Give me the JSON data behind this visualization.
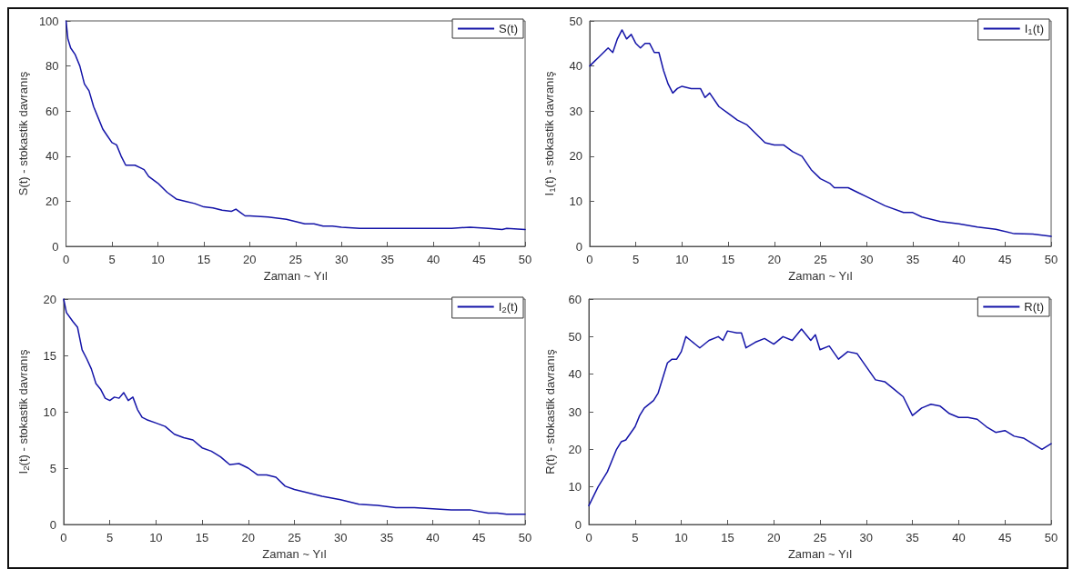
{
  "chart_data": [
    {
      "type": "line",
      "xlabel": "Zaman ~ Yıl",
      "ylabel": "S(t) - stokastik davranış",
      "xlim": [
        0,
        50
      ],
      "xticks": [
        0,
        5,
        10,
        15,
        20,
        25,
        30,
        35,
        40,
        45,
        50
      ],
      "ylim": [
        0,
        100
      ],
      "yticks": [
        0,
        20,
        40,
        60,
        80,
        100
      ],
      "grid": false,
      "legend": "top right",
      "marker": "none",
      "line_style": "solid",
      "series": [
        {
          "name": "S(t)",
          "color": "#1414a8",
          "x": [
            0,
            0.2,
            0.5,
            1,
            1.5,
            2,
            2.5,
            3,
            3.5,
            4,
            4.5,
            5,
            5.5,
            6,
            6.5,
            7,
            7.5,
            8,
            8.5,
            9,
            10,
            11,
            12,
            13,
            14,
            15,
            16,
            17,
            18,
            18.5,
            19,
            19.5,
            20,
            22,
            24,
            25,
            26,
            27,
            28,
            29,
            30,
            32,
            34,
            36,
            38,
            40,
            42,
            44,
            46,
            47.5,
            48,
            50
          ],
          "values": [
            100,
            92,
            88,
            85,
            80,
            72,
            69,
            62,
            57,
            52,
            49,
            46,
            45,
            40,
            36,
            36,
            36,
            35,
            34,
            31,
            28,
            24,
            21,
            20,
            19,
            17.5,
            17,
            16,
            15.5,
            16.5,
            15,
            13.5,
            13.5,
            13,
            12,
            11,
            10,
            10,
            9,
            9,
            8.5,
            8,
            8,
            8,
            8,
            8,
            8,
            8.5,
            8,
            7.5,
            8,
            7.5
          ]
        }
      ]
    },
    {
      "type": "line",
      "xlabel": "Zaman ~ Yıl",
      "ylabel": "I$_{1}$(t) - stokastik davranış",
      "xlim": [
        0,
        50
      ],
      "xticks": [
        0,
        5,
        10,
        15,
        20,
        25,
        30,
        35,
        40,
        45,
        50
      ],
      "ylim": [
        0,
        50
      ],
      "yticks": [
        0,
        10,
        20,
        30,
        40,
        50
      ],
      "grid": false,
      "legend": "top right",
      "marker": "none",
      "line_style": "solid",
      "series": [
        {
          "name": "I$_{1}$(t)",
          "color": "#1414a8",
          "x": [
            0,
            0.5,
            1,
            1.5,
            2,
            2.5,
            3,
            3.5,
            4,
            4.5,
            5,
            5.5,
            6,
            6.5,
            7,
            7.5,
            8,
            8.5,
            9,
            9.5,
            10,
            11,
            12,
            12.5,
            13,
            14,
            15,
            16,
            17,
            18,
            19,
            20,
            21,
            22,
            23,
            24,
            25,
            26,
            26.5,
            28,
            29,
            30,
            32,
            34,
            35,
            36,
            38,
            40,
            42,
            44,
            46,
            48,
            50
          ],
          "values": [
            40,
            41,
            42,
            43,
            44,
            43,
            46,
            48,
            46,
            47,
            45,
            44,
            45,
            45,
            43,
            43,
            39,
            36,
            34,
            35,
            35.5,
            35,
            35,
            33,
            34,
            31,
            29.5,
            28,
            27,
            25,
            23,
            22.5,
            22.5,
            21,
            20,
            17,
            15,
            14,
            13,
            13,
            12,
            11,
            9,
            7.5,
            7.5,
            6.5,
            5.5,
            5,
            4.3,
            3.8,
            2.8,
            2.7,
            2.2
          ]
        }
      ]
    },
    {
      "type": "line",
      "xlabel": "Zaman ~ Yıl",
      "ylabel": "I$_{2}$(t) - stokastik davranış",
      "xlim": [
        0,
        50
      ],
      "xticks": [
        0,
        5,
        10,
        15,
        20,
        25,
        30,
        35,
        40,
        45,
        50
      ],
      "ylim": [
        0,
        20
      ],
      "yticks": [
        0,
        5,
        10,
        15,
        20
      ],
      "grid": false,
      "legend": "top right",
      "marker": "none",
      "line_style": "solid",
      "series": [
        {
          "name": "I$_{2}$(t)",
          "color": "#1414a8",
          "x": [
            0,
            0.3,
            1,
            1.5,
            2,
            2.5,
            3,
            3.5,
            4,
            4.5,
            5,
            5.5,
            6,
            6.5,
            7,
            7.5,
            8,
            8.5,
            9,
            10,
            11,
            12,
            13,
            14,
            15,
            16,
            17,
            18,
            19,
            20,
            21,
            22,
            23,
            24,
            25,
            26,
            27,
            28,
            30,
            32,
            34,
            36,
            38,
            40,
            42,
            44,
            46,
            47,
            48,
            50
          ],
          "values": [
            20,
            18.8,
            18,
            17.5,
            15.5,
            14.7,
            13.8,
            12.5,
            12,
            11.2,
            11,
            11.3,
            11.2,
            11.7,
            11,
            11.3,
            10.2,
            9.5,
            9.3,
            9,
            8.7,
            8,
            7.7,
            7.5,
            6.8,
            6.5,
            6,
            5.3,
            5.4,
            5,
            4.4,
            4.4,
            4.2,
            3.4,
            3.1,
            2.9,
            2.7,
            2.5,
            2.2,
            1.8,
            1.7,
            1.5,
            1.5,
            1.4,
            1.3,
            1.3,
            1,
            1,
            0.9,
            0.9
          ]
        }
      ]
    },
    {
      "type": "line",
      "xlabel": "Zaman ~ Yıl",
      "ylabel": "R(t) - stokastik davranış",
      "xlim": [
        0,
        50
      ],
      "xticks": [
        0,
        5,
        10,
        15,
        20,
        25,
        30,
        35,
        40,
        45,
        50
      ],
      "ylim": [
        0,
        60
      ],
      "yticks": [
        0,
        10,
        20,
        30,
        40,
        50,
        60
      ],
      "grid": false,
      "legend": "top right",
      "marker": "none",
      "line_style": "solid",
      "series": [
        {
          "name": "R(t)",
          "color": "#1414a8",
          "x": [
            0,
            1,
            2,
            3,
            3.5,
            4,
            5,
            5.5,
            6,
            7,
            7.5,
            8,
            8.5,
            9,
            9.5,
            10,
            10.5,
            11,
            12,
            13,
            14,
            14.5,
            15,
            16,
            16.5,
            17,
            18,
            19,
            20,
            21,
            22,
            23,
            24,
            24.5,
            25,
            26,
            27,
            28,
            29,
            30,
            31,
            32,
            33,
            34,
            35,
            36,
            37,
            38,
            39,
            40,
            41,
            42,
            43,
            44,
            45,
            46,
            47,
            48,
            49,
            50
          ],
          "values": [
            5,
            10,
            14,
            20,
            22,
            22.5,
            26,
            29,
            31,
            33,
            35,
            39,
            43,
            44,
            44,
            46,
            50,
            49,
            47,
            49,
            50,
            49,
            51.5,
            51,
            51,
            47,
            48.5,
            49.5,
            48,
            50,
            49,
            52,
            49,
            50.5,
            46.5,
            47.5,
            44,
            46,
            45.5,
            42,
            38.5,
            38,
            36,
            34,
            29,
            31,
            32,
            31.5,
            29.5,
            28.5,
            28.5,
            28,
            26,
            24.5,
            25,
            23.5,
            23,
            21.5,
            20,
            21.5
          ]
        }
      ]
    }
  ]
}
